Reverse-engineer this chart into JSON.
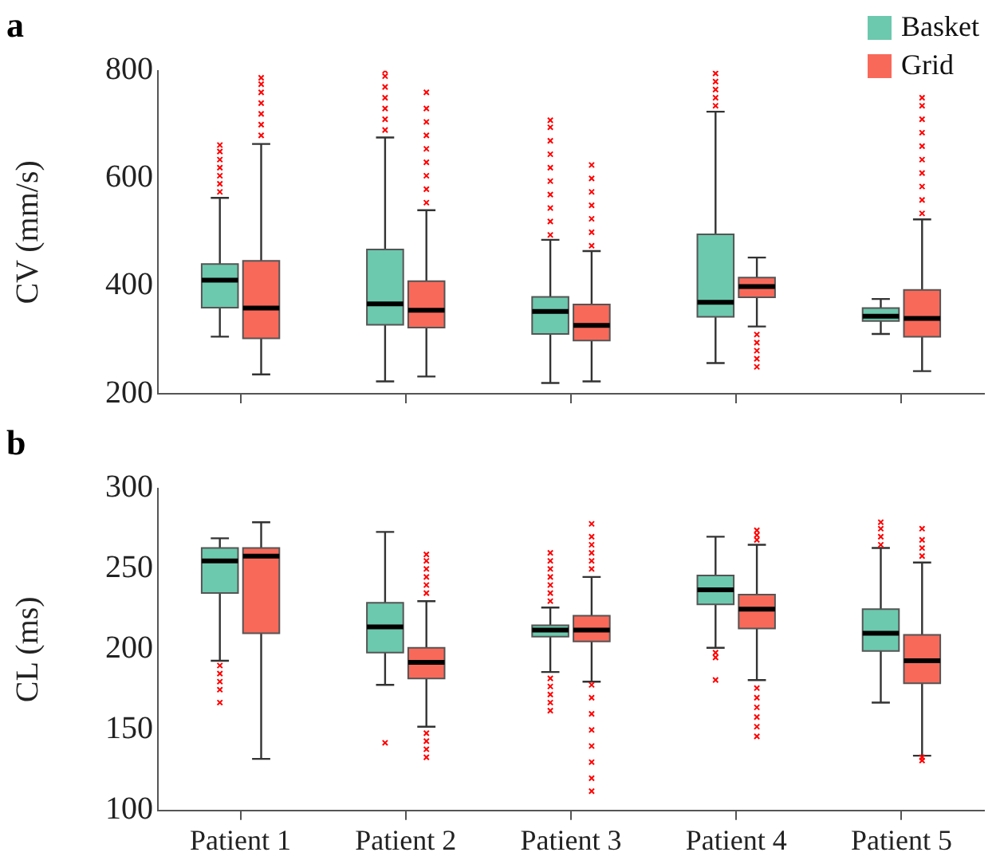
{
  "chart_data": [
    {
      "type": "box",
      "title": "a",
      "ylabel": "CV (mm/s)",
      "categories": [
        null,
        null,
        null,
        null,
        null
      ],
      "ylim": [
        200,
        800
      ],
      "yticks": [
        200,
        400,
        600,
        800
      ],
      "legend": "top right",
      "tick_labels": "y",
      "marker": "cross",
      "series": [
        {
          "name": "Basket",
          "color": "#6cc9ad",
          "boxes": [
            {
              "low": 306,
              "q1": 360,
              "median": 411,
              "q3": 441,
              "high": 564,
              "outliers": [
                575,
                590,
                605,
                620,
                635,
                650,
                662
              ]
            },
            {
              "low": 223,
              "q1": 328,
              "median": 367,
              "q3": 468,
              "high": 676,
              "outliers": [
                690,
                710,
                730,
                750,
                770,
                790,
                800
              ]
            },
            {
              "low": 220,
              "q1": 311,
              "median": 353,
              "q3": 380,
              "high": 486,
              "outliers": [
                495,
                520,
                545,
                570,
                595,
                620,
                645,
                670,
                695,
                708
              ]
            },
            {
              "low": 257,
              "q1": 343,
              "median": 370,
              "q3": 496,
              "high": 724,
              "outliers": [
                735,
                750,
                765,
                780,
                795
              ]
            },
            {
              "low": 311,
              "q1": 335,
              "median": 344,
              "q3": 359,
              "high": 376
            }
          ]
        },
        {
          "name": "Grid",
          "color": "#f8695a",
          "boxes": [
            {
              "low": 236,
              "q1": 303,
              "median": 359,
              "q3": 447,
              "high": 664,
              "outliers": [
                680,
                700,
                720,
                740,
                760,
                775,
                787
              ]
            },
            {
              "low": 232,
              "q1": 323,
              "median": 355,
              "q3": 409,
              "high": 541,
              "outliers": [
                555,
                580,
                605,
                630,
                655,
                680,
                705,
                730,
                760
              ]
            },
            {
              "low": 223,
              "q1": 299,
              "median": 327,
              "q3": 366,
              "high": 465,
              "outliers": [
                475,
                500,
                525,
                550,
                575,
                600,
                625
              ]
            },
            {
              "low": 325,
              "q1": 379,
              "median": 399,
              "q3": 416,
              "high": 453,
              "outliers": [
                250,
                265,
                280,
                295,
                310
              ]
            },
            {
              "low": 242,
              "q1": 306,
              "median": 340,
              "q3": 393,
              "high": 524,
              "outliers": [
                535,
                560,
                585,
                610,
                635,
                660,
                685,
                710,
                735,
                750
              ]
            }
          ]
        }
      ]
    },
    {
      "type": "box",
      "title": "b",
      "ylabel": "CL (ms)",
      "categories": [
        "Patient 1",
        "Patient 2",
        "Patient 3",
        "Patient 4",
        "Patient 5"
      ],
      "ylim": [
        100,
        300
      ],
      "yticks": [
        100,
        150,
        200,
        250,
        300
      ],
      "marker": "cross",
      "series": [
        {
          "color": "#6cc9ad",
          "boxes": [
            {
              "low": 193,
              "q1": 235,
              "median": 255,
              "q3": 263,
              "high": 269,
              "outliers": [
                167,
                175,
                180,
                185,
                190
              ]
            },
            {
              "low": 178,
              "q1": 198,
              "median": 214,
              "q3": 229,
              "high": 273,
              "outliers": [
                142
              ]
            },
            {
              "low": 186,
              "q1": 208,
              "median": 212,
              "q3": 215,
              "high": 226,
              "outliers": [
                162,
                167,
                172,
                177,
                182,
                230,
                235,
                240,
                245,
                250,
                255,
                260
              ]
            },
            {
              "low": 201,
              "q1": 228,
              "median": 237,
              "q3": 246,
              "high": 270,
              "outliers": [
                181,
                195,
                198
              ]
            },
            {
              "low": 167,
              "q1": 199,
              "median": 210,
              "q3": 225,
              "high": 263,
              "outliers": [
                265,
                270,
                275,
                279
              ]
            }
          ]
        },
        {
          "color": "#f8695a",
          "boxes": [
            {
              "low": 132,
              "q1": 210,
              "median": 258,
              "q3": 263,
              "high": 279
            },
            {
              "low": 152,
              "q1": 182,
              "median": 192,
              "q3": 201,
              "high": 230,
              "outliers": [
                133,
                138,
                143,
                148,
                235,
                240,
                245,
                250,
                255,
                259
              ]
            },
            {
              "low": 180,
              "q1": 205,
              "median": 212,
              "q3": 221,
              "high": 245,
              "outliers": [
                112,
                120,
                130,
                140,
                150,
                160,
                170,
                178,
                250,
                255,
                260,
                265,
                270,
                278
              ]
            },
            {
              "low": 181,
              "q1": 213,
              "median": 225,
              "q3": 234,
              "high": 265,
              "outliers": [
                146,
                152,
                158,
                164,
                170,
                176,
                268,
                271,
                274
              ]
            },
            {
              "low": 134,
              "q1": 179,
              "median": 193,
              "q3": 209,
              "high": 254,
              "outliers": [
                131,
                133,
                258,
                263,
                268,
                275
              ]
            }
          ]
        }
      ]
    }
  ]
}
